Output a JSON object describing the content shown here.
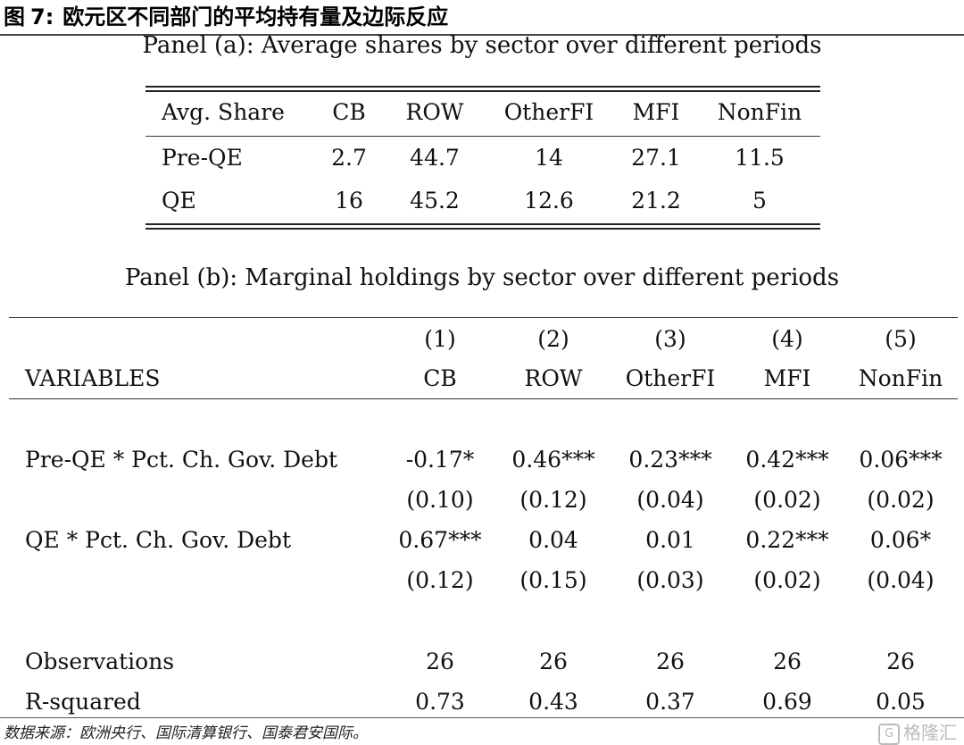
{
  "figure": {
    "label": "图",
    "number": "7:",
    "title": "欧元区不同部门的平均持有量及边际反应"
  },
  "panel_a": {
    "title": "Panel (a): Average shares by sector over different periods",
    "header": [
      "Avg. Share",
      "CB",
      "ROW",
      "OtherFI",
      "MFI",
      "NonFin"
    ],
    "rows": [
      [
        "Pre-QE",
        "2.7",
        "44.7",
        "14",
        "27.1",
        "11.5"
      ],
      [
        "QE",
        "16",
        "45.2",
        "12.6",
        "21.2",
        "5"
      ]
    ]
  },
  "panel_b": {
    "title": "Panel (b): Marginal holdings by sector over different periods",
    "col_numbers": [
      "(1)",
      "(2)",
      "(3)",
      "(4)",
      "(5)"
    ],
    "header": [
      "VARIABLES",
      "CB",
      "ROW",
      "OtherFI",
      "MFI",
      "NonFin"
    ],
    "rows": [
      [
        "Pre-QE * Pct. Ch. Gov. Debt",
        "-0.17*",
        "0.46***",
        "0.23***",
        "0.42***",
        "0.06***"
      ],
      [
        "",
        "(0.10)",
        "(0.12)",
        "(0.04)",
        "(0.02)",
        "(0.02)"
      ],
      [
        "QE * Pct. Ch. Gov. Debt",
        "0.67***",
        "0.04",
        "0.01",
        "0.22***",
        "0.06*"
      ],
      [
        "",
        "(0.12)",
        "(0.15)",
        "(0.03)",
        "(0.02)",
        "(0.04)"
      ],
      [
        "Observations",
        "26",
        "26",
        "26",
        "26",
        "26"
      ],
      [
        "R-squared",
        "0.73",
        "0.43",
        "0.37",
        "0.69",
        "0.05"
      ]
    ]
  },
  "source": "数据来源：欧洲央行、国际清算银行、国泰君安国际。",
  "watermark": {
    "logo_text": "G",
    "text": "格隆汇"
  }
}
